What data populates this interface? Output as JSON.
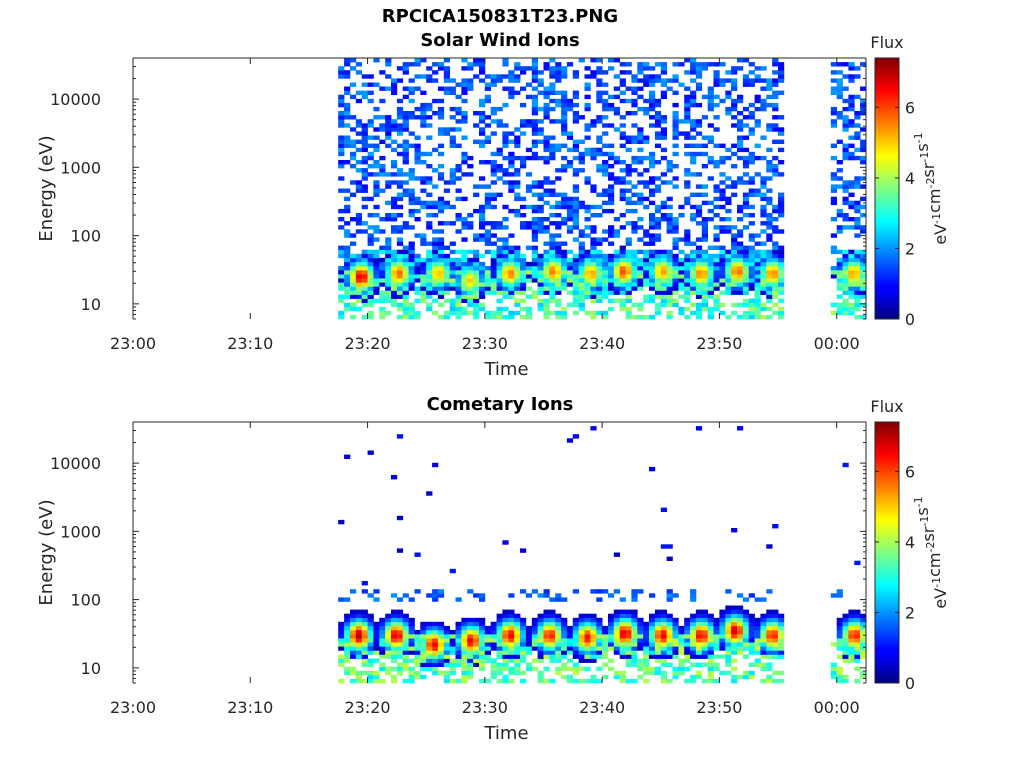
{
  "figure": {
    "main_title": "RPCICA150831T23.PNG"
  },
  "colorbar": {
    "label": "Flux",
    "unit_label": "eV-1cm-2sr-1s-1",
    "ticks": [
      "0",
      "2",
      "4",
      "6"
    ],
    "range": [
      0,
      7.4
    ],
    "colormap": "jet"
  },
  "chart_data": [
    {
      "type": "heatmap",
      "title": "Solar Wind Ions",
      "xlabel": "Time",
      "ylabel": "Energy (eV)",
      "x_ticks": [
        "23:00",
        "23:10",
        "23:20",
        "23:30",
        "23:40",
        "23:50",
        "00:00"
      ],
      "y_ticks": [
        "10",
        "100",
        "1000",
        "10000"
      ],
      "y_scale": "log",
      "ylim": [
        6,
        40000
      ],
      "xlim_minutes": [
        0,
        62.5
      ],
      "data_extent_minutes": [
        [
          17.5,
          55.5
        ],
        [
          59.5,
          62.2
        ]
      ],
      "peaks": [
        {
          "t_min": 19.2,
          "energy_eV": 25,
          "flux": 6.8
        },
        {
          "t_min": 22.4,
          "energy_eV": 28,
          "flux": 5.8
        },
        {
          "t_min": 25.8,
          "energy_eV": 28,
          "flux": 5.2
        },
        {
          "t_min": 28.5,
          "energy_eV": 22,
          "flux": 5.0
        },
        {
          "t_min": 31.9,
          "energy_eV": 28,
          "flux": 5.6
        },
        {
          "t_min": 35.6,
          "energy_eV": 30,
          "flux": 5.6
        },
        {
          "t_min": 38.8,
          "energy_eV": 28,
          "flux": 5.4
        },
        {
          "t_min": 41.6,
          "energy_eV": 30,
          "flux": 6.0
        },
        {
          "t_min": 44.9,
          "energy_eV": 30,
          "flux": 5.4
        },
        {
          "t_min": 48.2,
          "energy_eV": 28,
          "flux": 5.6
        },
        {
          "t_min": 51.3,
          "energy_eV": 30,
          "flux": 5.8
        },
        {
          "t_min": 54.3,
          "energy_eV": 28,
          "flux": 5.6
        },
        {
          "t_min": 61.2,
          "energy_eV": 28,
          "flux": 5.4
        }
      ]
    },
    {
      "type": "heatmap",
      "title": "Cometary Ions",
      "xlabel": "Time",
      "ylabel": "Energy (eV)",
      "x_ticks": [
        "23:00",
        "23:10",
        "23:20",
        "23:30",
        "23:40",
        "23:50",
        "00:00"
      ],
      "y_ticks": [
        "10",
        "100",
        "1000",
        "10000"
      ],
      "y_scale": "log",
      "ylim": [
        6,
        40000
      ],
      "xlim_minutes": [
        0,
        62.5
      ],
      "data_extent_minutes": [
        [
          17.5,
          55.5
        ],
        [
          59.5,
          62.2
        ]
      ],
      "peaks": [
        {
          "t_min": 19.0,
          "energy_eV": 30,
          "flux": 7.0
        },
        {
          "t_min": 22.2,
          "energy_eV": 30,
          "flux": 6.8
        },
        {
          "t_min": 25.4,
          "energy_eV": 22,
          "flux": 6.6
        },
        {
          "t_min": 28.6,
          "energy_eV": 25,
          "flux": 6.6
        },
        {
          "t_min": 31.9,
          "energy_eV": 30,
          "flux": 6.6
        },
        {
          "t_min": 35.3,
          "energy_eV": 30,
          "flux": 6.4
        },
        {
          "t_min": 38.5,
          "energy_eV": 28,
          "flux": 6.4
        },
        {
          "t_min": 41.7,
          "energy_eV": 32,
          "flux": 6.8
        },
        {
          "t_min": 44.9,
          "energy_eV": 30,
          "flux": 6.6
        },
        {
          "t_min": 48.2,
          "energy_eV": 30,
          "flux": 6.6
        },
        {
          "t_min": 51.1,
          "energy_eV": 35,
          "flux": 6.8
        },
        {
          "t_min": 54.3,
          "energy_eV": 30,
          "flux": 6.4
        },
        {
          "t_min": 61.3,
          "energy_eV": 30,
          "flux": 6.4
        }
      ]
    }
  ]
}
